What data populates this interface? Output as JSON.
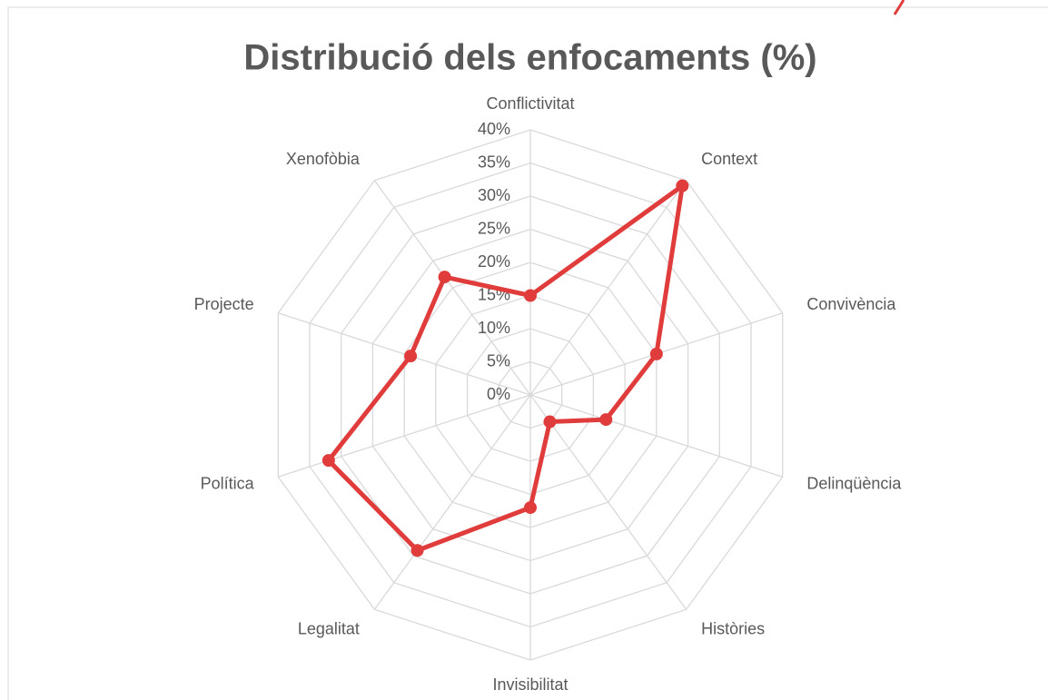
{
  "chart_data": {
    "type": "radar",
    "title": "Distribució dels enfocaments (%)",
    "categories": [
      "Conflictivitat",
      "Context",
      "Convivència",
      "Delinqüència",
      "Històries",
      "Invisibilitat",
      "Legalitat",
      "Política",
      "Projecte",
      "Xenofòbia"
    ],
    "series": [
      {
        "name": "Enfocaments",
        "color": "#e03c3c",
        "values": [
          15,
          39,
          20,
          12,
          5,
          17,
          29,
          32,
          19,
          22
        ]
      }
    ],
    "ylim": [
      0,
      40
    ],
    "yticks": [
      {
        "value": 0,
        "label": "0%"
      },
      {
        "value": 5,
        "label": "5%"
      },
      {
        "value": 10,
        "label": "10%"
      },
      {
        "value": 15,
        "label": "15%"
      },
      {
        "value": 20,
        "label": "20%"
      },
      {
        "value": 25,
        "label": "25%"
      },
      {
        "value": 30,
        "label": "30%"
      },
      {
        "value": 35,
        "label": "35%"
      },
      {
        "value": 40,
        "label": "40%"
      }
    ],
    "grid": true
  }
}
